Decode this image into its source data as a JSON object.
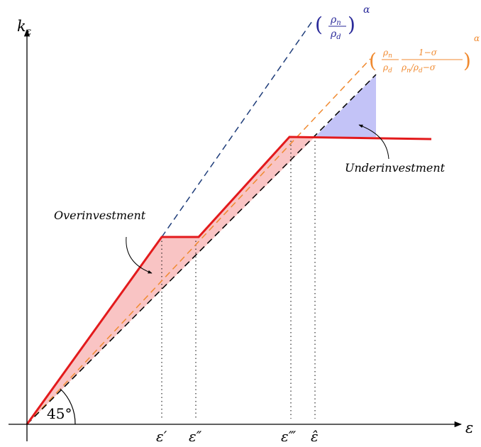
{
  "axes": {
    "x_label": "ε",
    "y_label": "k",
    "y_label_sub": "ε"
  },
  "x_ticks": [
    "ε′",
    "ε″",
    "ε‴",
    "ε̂"
  ],
  "angle_label": "45°",
  "annotations": {
    "overinvestment": "Overinvestment",
    "underinvestment": "Underinvestment"
  },
  "formula_blue": {
    "open": "(",
    "num": "ρ",
    "num_sub": "n",
    "den": "ρ",
    "den_sub": "d",
    "close": ")",
    "exp": "α"
  },
  "formula_orange": {
    "open": "(",
    "f1_num": "ρ",
    "f1_num_sub": "n",
    "f1_den": "ρ",
    "f1_den_sub": "d",
    "f2_num": "1−σ",
    "f2_den_a": "ρ",
    "f2_den_a_sub": "n",
    "f2_den_b": "/ρ",
    "f2_den_b_sub": "d",
    "f2_den_c": "−σ",
    "close": ")",
    "exp": "α"
  },
  "colors": {
    "red_line": "#e31a1c",
    "over_fill": "#f9c4c4",
    "under_fill": "#c3c3f7",
    "blue_dash": "#1f3d7a",
    "orange_dash": "#f08a30",
    "formula_blue": "#2a2a9a",
    "formula_orange": "#f08a30"
  }
}
